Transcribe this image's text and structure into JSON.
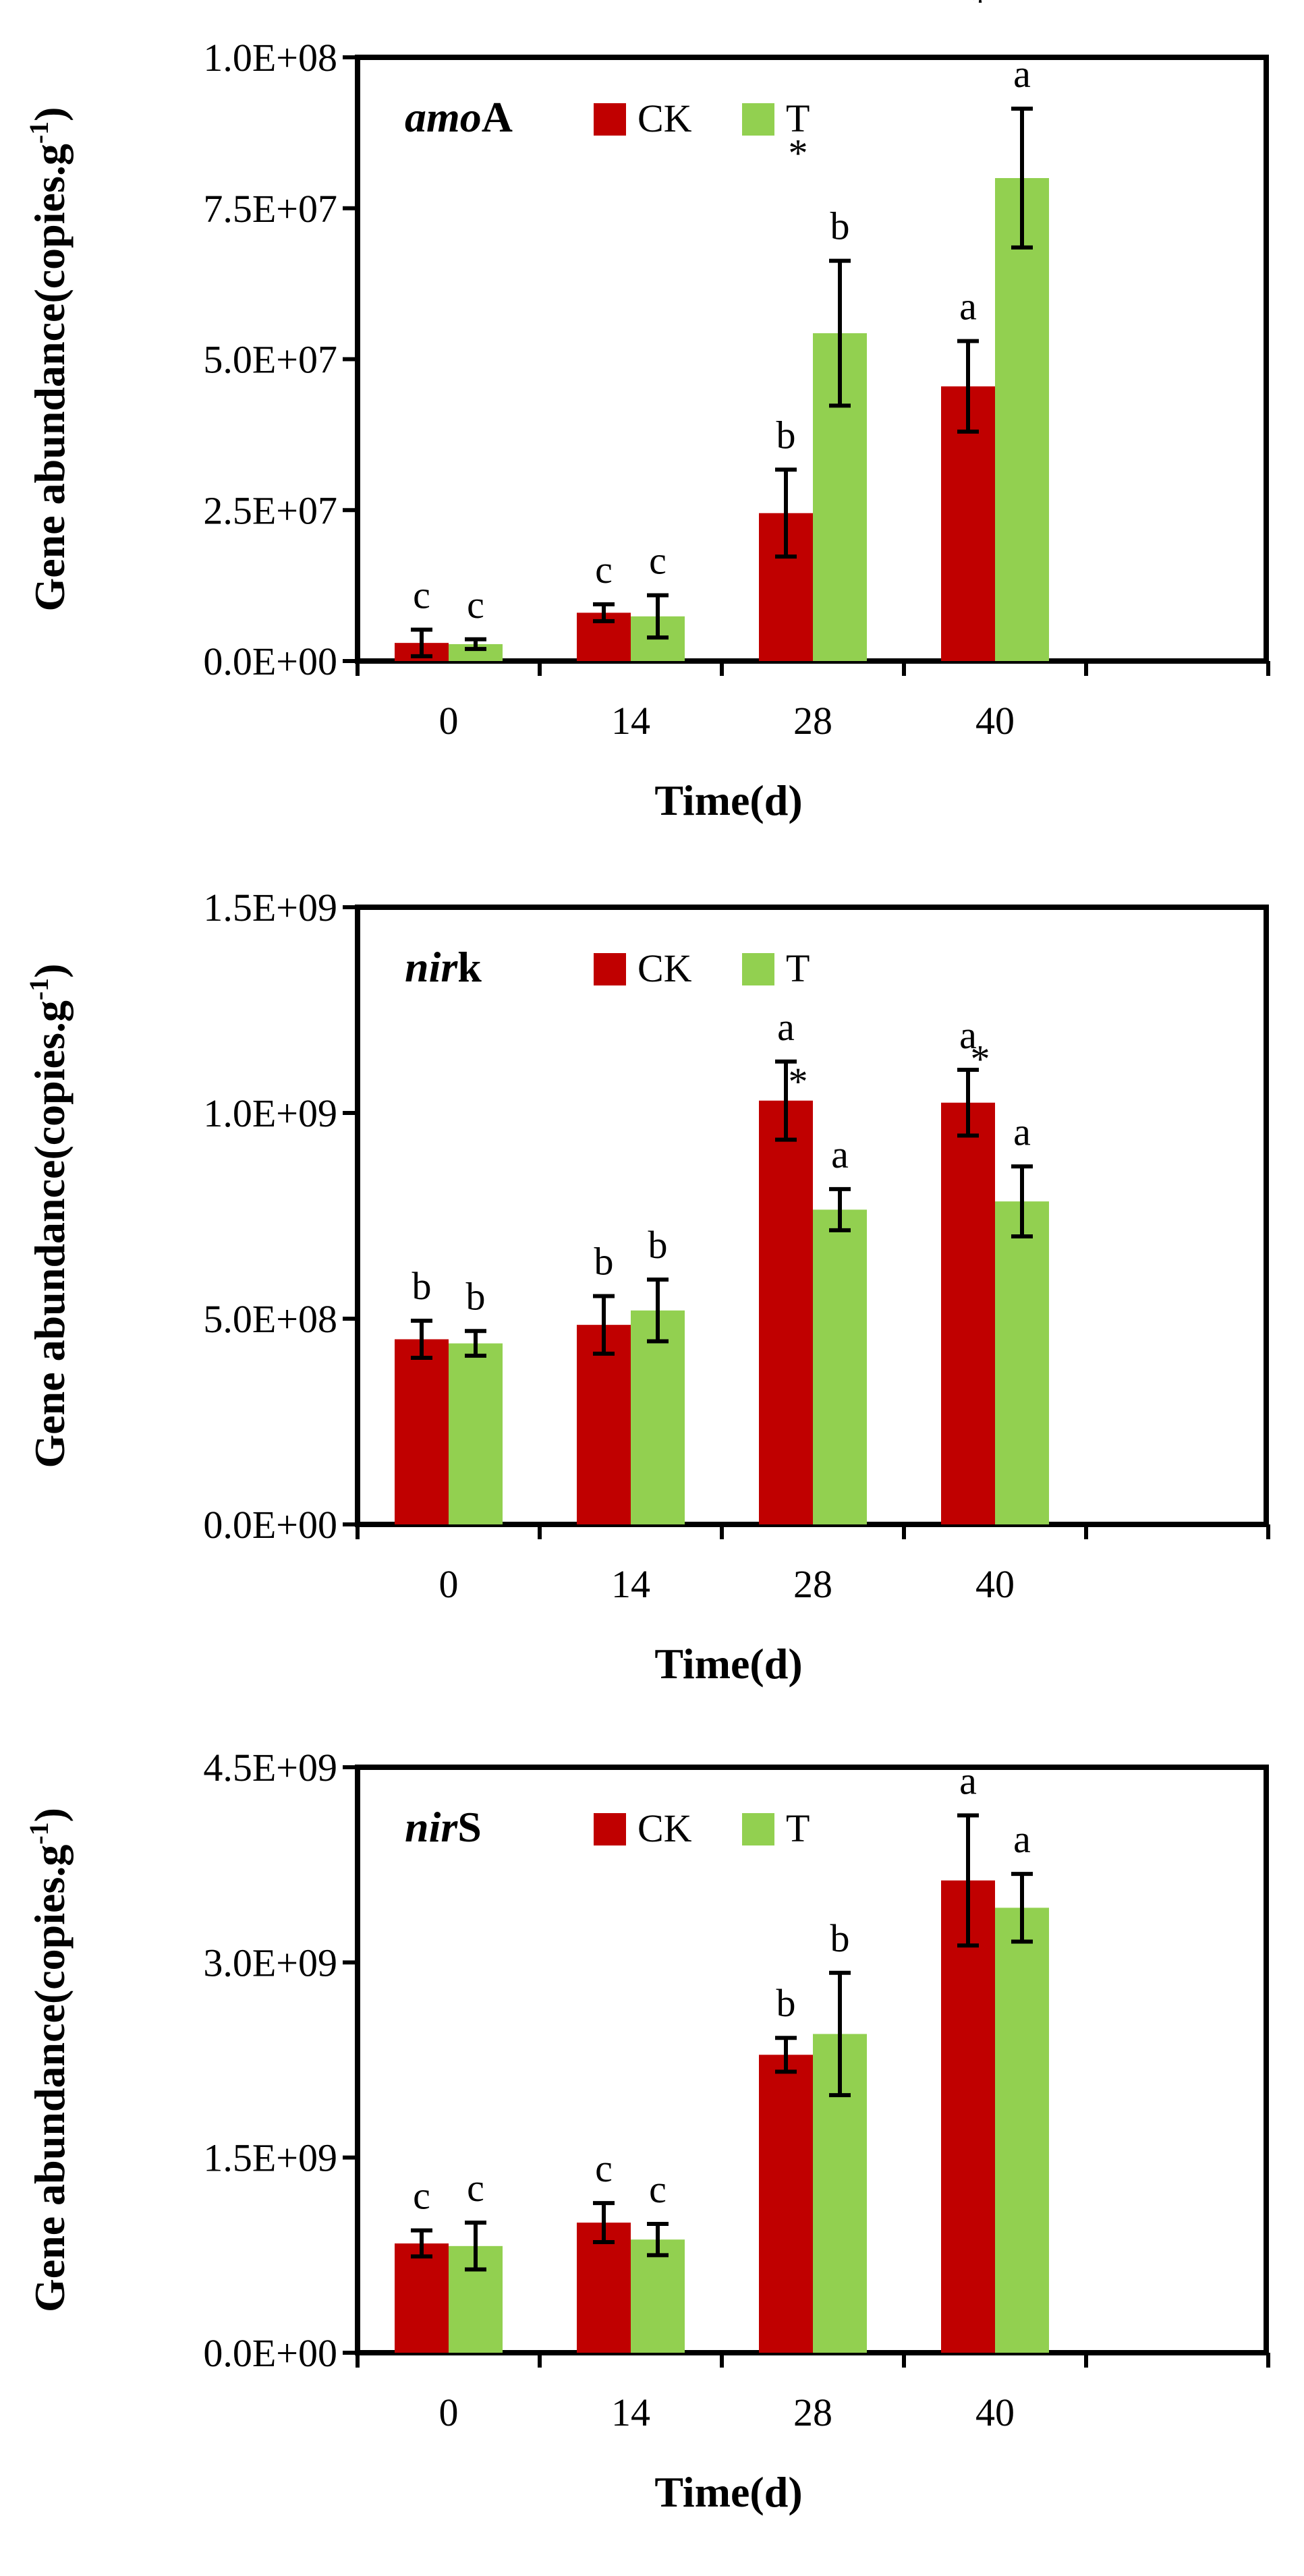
{
  "colors": {
    "CK": "#c00000",
    "T": "#92d050",
    "axis": "#000000"
  },
  "chart_data": [
    {
      "type": "bar",
      "gene_prefix": "amo",
      "gene_suffix": "A",
      "categories": [
        "0",
        "14",
        "28",
        "40"
      ],
      "series": [
        {
          "name": "CK",
          "values": [
            3000000,
            8000000,
            24500000,
            45500000
          ],
          "errors": [
            2200000,
            1400000,
            7200000,
            7500000
          ]
        },
        {
          "name": "T",
          "values": [
            2800000,
            7400000,
            54300000,
            80000000
          ],
          "errors": [
            800000,
            3500000,
            12000000,
            11500000
          ]
        }
      ],
      "letters": {
        "CK": [
          "c",
          "c",
          "b",
          "a"
        ],
        "T": [
          "c",
          "c",
          "b",
          "a"
        ]
      },
      "stars": {
        "CK": [
          false,
          false,
          false,
          false
        ],
        "T": [
          false,
          false,
          true,
          true
        ]
      },
      "yticks": [
        "0.0E+00",
        "2.5E+07",
        "5.0E+07",
        "7.5E+07",
        "1.0E+08"
      ],
      "ylim": [
        0,
        100000000
      ],
      "xlabel": "Time(d)",
      "ylabel_main": "Gene abundance(copies.g",
      "ylabel_sup": "-1",
      "ylabel_end": ")"
    },
    {
      "type": "bar",
      "gene_prefix": "nir",
      "gene_suffix": "k",
      "categories": [
        "0",
        "14",
        "28",
        "40"
      ],
      "series": [
        {
          "name": "CK",
          "values": [
            450000000,
            485000000,
            1030000000,
            1025000000
          ],
          "errors": [
            45000000,
            70000000,
            95000000,
            80000000
          ]
        },
        {
          "name": "T",
          "values": [
            440000000,
            520000000,
            765000000,
            785000000
          ],
          "errors": [
            30000000,
            75000000,
            50000000,
            85000000
          ]
        }
      ],
      "letters": {
        "CK": [
          "b",
          "b",
          "a",
          "a"
        ],
        "T": [
          "b",
          "b",
          "a",
          "a"
        ]
      },
      "stars": {
        "CK": [
          false,
          false,
          false,
          false
        ],
        "T": [
          false,
          false,
          true,
          true
        ]
      },
      "yticks": [
        "0.0E+00",
        "5.0E+08",
        "1.0E+09",
        "1.5E+09"
      ],
      "ylim": [
        0,
        1500000000
      ],
      "xlabel": "Time(d)",
      "ylabel_main": "Gene abundance(copies.g",
      "ylabel_sup": "-1",
      "ylabel_end": ")"
    },
    {
      "type": "bar",
      "gene_prefix": "nir",
      "gene_suffix": "S",
      "categories": [
        "0",
        "14",
        "28",
        "40"
      ],
      "series": [
        {
          "name": "CK",
          "values": [
            840000000,
            1000000000,
            2290000000,
            3630000000
          ],
          "errors": [
            100000000,
            150000000,
            130000000,
            500000000
          ]
        },
        {
          "name": "T",
          "values": [
            820000000,
            870000000,
            2450000000,
            3420000000
          ],
          "errors": [
            180000000,
            120000000,
            470000000,
            260000000
          ]
        }
      ],
      "letters": {
        "CK": [
          "c",
          "c",
          "b",
          "a"
        ],
        "T": [
          "c",
          "c",
          "b",
          "a"
        ]
      },
      "stars": {
        "CK": [
          false,
          false,
          false,
          false
        ],
        "T": [
          false,
          false,
          false,
          false
        ]
      },
      "yticks": [
        "0.0E+00",
        "1.5E+09",
        "3.0E+09",
        "4.5E+09"
      ],
      "ylim": [
        0,
        4500000000
      ],
      "xlabel": "Time(d)",
      "ylabel_main": "Gene abundance(copies.g",
      "ylabel_sup": "-1",
      "ylabel_end": ")"
    }
  ]
}
